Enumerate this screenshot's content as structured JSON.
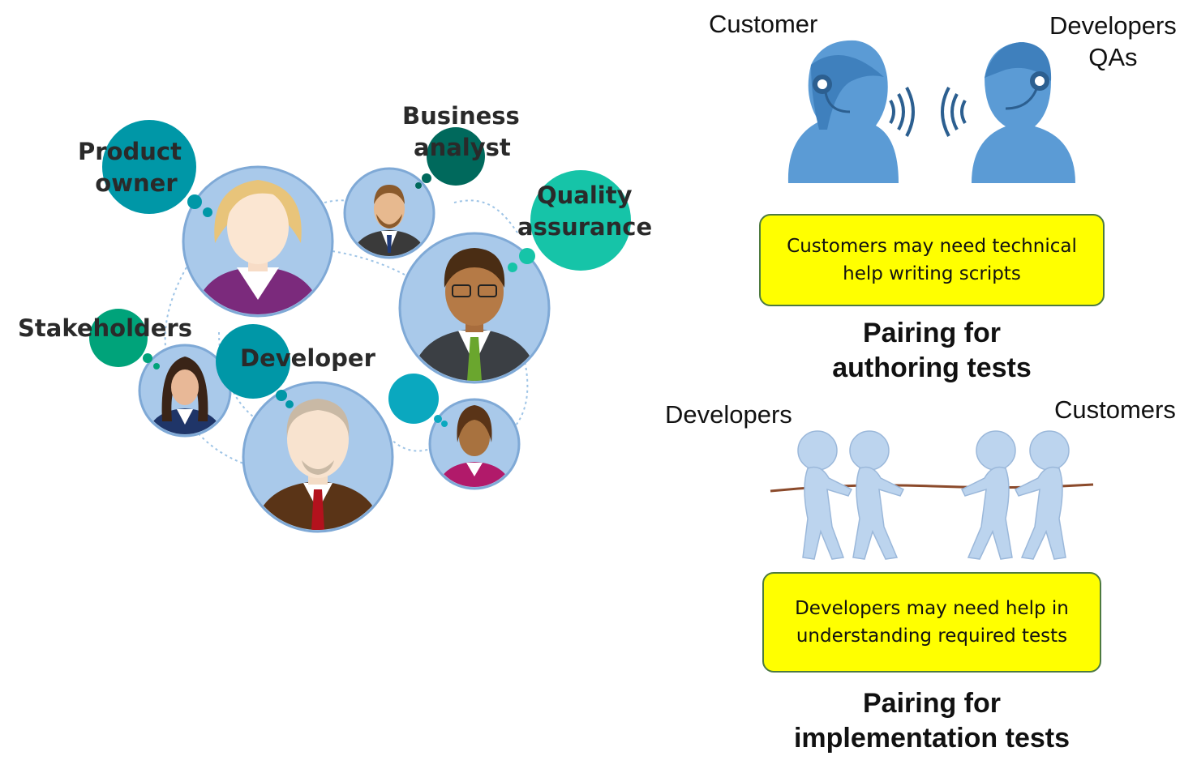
{
  "team": {
    "roles": {
      "product_owner": [
        "Product",
        "owner"
      ],
      "business_analyst": [
        "Business",
        "analyst"
      ],
      "quality_assurance": [
        "Quality",
        "assurance"
      ],
      "stakeholders": "Stakeholders",
      "developer": "Developer"
    },
    "colors": {
      "bubble_teal": "#0097a7",
      "bubble_dark": "#00695c",
      "bubble_mint": "#16c4a8",
      "bubble_green": "#00a37a",
      "avatar_bg": "#a9c9ea",
      "connector": "#9ec4e6"
    }
  },
  "authoring": {
    "customer_label": "Customer",
    "developers_label": [
      "Developers",
      "QAs"
    ],
    "note": [
      "Customers  may need technical",
      "help writing scripts"
    ],
    "caption": [
      "Pairing for",
      "authoring tests"
    ],
    "headset_color": "#5b9bd5"
  },
  "implementation": {
    "developers_label": "Developers",
    "customers_label": "Customers",
    "note": [
      "Developers may need help in",
      "understanding required tests"
    ],
    "caption": [
      "Pairing for",
      "implementation tests"
    ],
    "figure_color": "#bcd4ee",
    "rope_color": "#8b4a2b"
  },
  "note_colors": {
    "fill": "#ffff00",
    "border": "#4d7a40"
  }
}
